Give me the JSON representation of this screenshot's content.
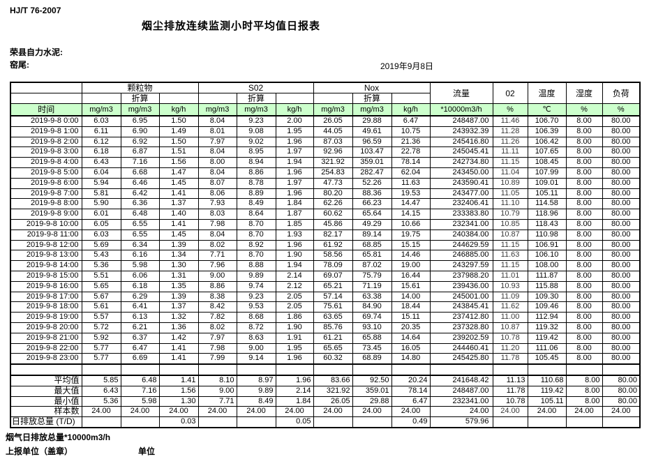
{
  "page": {
    "standard_code": "HJ/T  76-2007",
    "title": "烟尘排放连续监测小时平均值日报表",
    "company": "荣县自力水泥:",
    "station": "窑尾:",
    "date": "2019年9月8日"
  },
  "colors": {
    "header_green": "#ccffcc",
    "border": "#000000",
    "background": "#ffffff"
  },
  "table": {
    "time_header": "时间",
    "converted_label": "折算",
    "group_headers": {
      "pm": "颗粒物",
      "so2": "S02",
      "nox": "Nox",
      "flow": "流量",
      "o2": "02",
      "temperature": "温度",
      "humidity": "湿度",
      "load": "负荷"
    },
    "units": [
      "mg/m3",
      "mg/m3",
      "kg/h",
      "mg/m3",
      "mg/m3",
      "kg/h",
      "mg/m3",
      "mg/m3",
      "kg/h",
      "*10000m3/h",
      "%",
      "℃",
      "%",
      "%"
    ],
    "rows": [
      [
        "2019-9-8 0:00",
        "6.03",
        "6.95",
        "1.50",
        "8.04",
        "9.23",
        "2.00",
        "26.05",
        "29.88",
        "6.47",
        "248487.00",
        "11.46",
        "106.70",
        "8.00",
        "80.00"
      ],
      [
        "2019-9-8 1:00",
        "6.11",
        "6.90",
        "1.49",
        "8.01",
        "9.08",
        "1.95",
        "44.05",
        "49.61",
        "10.75",
        "243932.39",
        "11.28",
        "106.39",
        "8.00",
        "80.00"
      ],
      [
        "2019-9-8 2:00",
        "6.12",
        "6.92",
        "1.50",
        "7.97",
        "9.02",
        "1.96",
        "87.03",
        "96.59",
        "21.36",
        "245416.80",
        "11.26",
        "106.42",
        "8.00",
        "80.00"
      ],
      [
        "2019-9-8 3:00",
        "6.18",
        "6.87",
        "1.51",
        "8.04",
        "8.95",
        "1.97",
        "92.96",
        "103.47",
        "22.78",
        "245045.41",
        "11.11",
        "107.65",
        "8.00",
        "80.00"
      ],
      [
        "2019-9-8 4:00",
        "6.43",
        "7.16",
        "1.56",
        "8.00",
        "8.94",
        "1.94",
        "321.92",
        "359.01",
        "78.14",
        "242734.80",
        "11.15",
        "108.45",
        "8.00",
        "80.00"
      ],
      [
        "2019-9-8 5:00",
        "6.04",
        "6.68",
        "1.47",
        "8.04",
        "8.86",
        "1.96",
        "254.83",
        "282.47",
        "62.04",
        "243450.00",
        "11.04",
        "107.99",
        "8.00",
        "80.00"
      ],
      [
        "2019-9-8 6:00",
        "5.94",
        "6.46",
        "1.45",
        "8.07",
        "8.78",
        "1.97",
        "47.73",
        "52.26",
        "11.63",
        "243590.41",
        "10.89",
        "109.01",
        "8.00",
        "80.00"
      ],
      [
        "2019-9-8 7:00",
        "5.81",
        "6.42",
        "1.41",
        "8.06",
        "8.89",
        "1.96",
        "80.20",
        "88.36",
        "19.53",
        "243477.00",
        "11.05",
        "105.11",
        "8.00",
        "80.00"
      ],
      [
        "2019-9-8 8:00",
        "5.90",
        "6.36",
        "1.37",
        "7.93",
        "8.49",
        "1.84",
        "62.26",
        "66.23",
        "14.47",
        "232406.41",
        "11.10",
        "114.58",
        "8.00",
        "80.00"
      ],
      [
        "2019-9-8 9:00",
        "6.01",
        "6.48",
        "1.40",
        "8.03",
        "8.64",
        "1.87",
        "60.62",
        "65.64",
        "14.15",
        "233383.80",
        "10.79",
        "118.96",
        "8.00",
        "80.00"
      ],
      [
        "2019-9-8 10:00",
        "6.05",
        "6.55",
        "1.41",
        "7.98",
        "8.70",
        "1.85",
        "45.86",
        "49.29",
        "10.66",
        "232341.00",
        "10.85",
        "118.43",
        "8.00",
        "80.00"
      ],
      [
        "2019-9-8 11:00",
        "6.03",
        "6.55",
        "1.45",
        "8.04",
        "8.70",
        "1.93",
        "82.17",
        "89.14",
        "19.75",
        "240384.00",
        "10.87",
        "110.98",
        "8.00",
        "80.00"
      ],
      [
        "2019-9-8 12:00",
        "5.69",
        "6.34",
        "1.39",
        "8.02",
        "8.92",
        "1.96",
        "61.92",
        "68.85",
        "15.15",
        "244629.59",
        "11.15",
        "106.91",
        "8.00",
        "80.00"
      ],
      [
        "2019-9-8 13:00",
        "5.43",
        "6.16",
        "1.34",
        "7.71",
        "8.70",
        "1.90",
        "58.56",
        "65.81",
        "14.46",
        "246885.00",
        "11.63",
        "106.10",
        "8.00",
        "80.00"
      ],
      [
        "2019-9-8 14:00",
        "5.36",
        "5.98",
        "1.30",
        "7.96",
        "8.88",
        "1.94",
        "78.09",
        "87.02",
        "19.00",
        "243297.59",
        "11.15",
        "108.00",
        "8.00",
        "80.00"
      ],
      [
        "2019-9-8 15:00",
        "5.51",
        "6.06",
        "1.31",
        "9.00",
        "9.89",
        "2.14",
        "69.07",
        "75.79",
        "16.44",
        "237988.20",
        "11.01",
        "111.87",
        "8.00",
        "80.00"
      ],
      [
        "2019-9-8 16:00",
        "5.65",
        "6.18",
        "1.35",
        "8.86",
        "9.74",
        "2.12",
        "65.21",
        "71.19",
        "15.61",
        "239436.00",
        "10.93",
        "115.88",
        "8.00",
        "80.00"
      ],
      [
        "2019-9-8 17:00",
        "5.67",
        "6.29",
        "1.39",
        "8.38",
        "9.23",
        "2.05",
        "57.14",
        "63.38",
        "14.00",
        "245001.00",
        "11.09",
        "109.30",
        "8.00",
        "80.00"
      ],
      [
        "2019-9-8 18:00",
        "5.61",
        "6.41",
        "1.37",
        "8.42",
        "9.53",
        "2.05",
        "75.61",
        "84.90",
        "18.44",
        "243845.41",
        "11.62",
        "109.46",
        "8.00",
        "80.00"
      ],
      [
        "2019-9-8 19:00",
        "5.57",
        "6.13",
        "1.32",
        "7.82",
        "8.68",
        "1.86",
        "63.65",
        "69.74",
        "15.11",
        "237412.80",
        "11.00",
        "112.94",
        "8.00",
        "80.00"
      ],
      [
        "2019-9-8 20:00",
        "5.72",
        "6.21",
        "1.36",
        "8.02",
        "8.72",
        "1.90",
        "85.76",
        "93.10",
        "20.35",
        "237328.80",
        "10.87",
        "119.32",
        "8.00",
        "80.00"
      ],
      [
        "2019-9-8 21:00",
        "5.92",
        "6.37",
        "1.42",
        "7.97",
        "8.63",
        "1.91",
        "61.21",
        "65.88",
        "14.64",
        "239202.59",
        "10.78",
        "119.42",
        "8.00",
        "80.00"
      ],
      [
        "2019-9-8 22:00",
        "5.77",
        "6.47",
        "1.41",
        "7.98",
        "9.00",
        "1.95",
        "65.65",
        "73.45",
        "16.05",
        "244460.41",
        "11.20",
        "111.06",
        "8.00",
        "80.00"
      ],
      [
        "2019-9-8 23:00",
        "5.77",
        "6.69",
        "1.41",
        "7.99",
        "9.14",
        "1.96",
        "60.32",
        "68.89",
        "14.80",
        "245425.80",
        "11.78",
        "105.45",
        "8.00",
        "80.00"
      ]
    ],
    "summary_rows": [
      {
        "label": "平均值",
        "type": "avg",
        "values": [
          "5.85",
          "6.48",
          "1.41",
          "8.10",
          "8.97",
          "1.96",
          "83.66",
          "92.50",
          "20.24",
          "241648.42",
          "11.13",
          "110.68",
          "8.00",
          "80.00"
        ]
      },
      {
        "label": "最大值",
        "type": "max",
        "values": [
          "6.43",
          "7.16",
          "1.56",
          "9.00",
          "9.89",
          "2.14",
          "321.92",
          "359.01",
          "78.14",
          "248487.00",
          "11.78",
          "119.42",
          "8.00",
          "80.00"
        ]
      },
      {
        "label": "最小值",
        "type": "min",
        "values": [
          "5.36",
          "5.98",
          "1.30",
          "7.71",
          "8.49",
          "1.84",
          "26.05",
          "29.88",
          "6.47",
          "232341.00",
          "10.78",
          "105.11",
          "8.00",
          "80.00"
        ]
      },
      {
        "label": "样本数",
        "type": "count",
        "values": [
          "24.00",
          "24.00",
          "24.00",
          "24.00",
          "24.00",
          "24.00",
          "24.00",
          "24.00",
          "24.00",
          "24.00",
          "24.00",
          "24.00",
          "24.00",
          "24.00"
        ]
      },
      {
        "label": "日排放总量 (T/D)",
        "type": "total",
        "values": [
          "",
          "",
          "0.03",
          "",
          "",
          "0.05",
          "",
          "",
          "0.49",
          "579.96",
          "",
          "",
          "",
          ""
        ]
      }
    ]
  },
  "footer": {
    "flue_total_label": "烟气日排放总量*10000m3/h",
    "report_unit_label": "上报单位（盖章）",
    "unit_label": "单位"
  }
}
